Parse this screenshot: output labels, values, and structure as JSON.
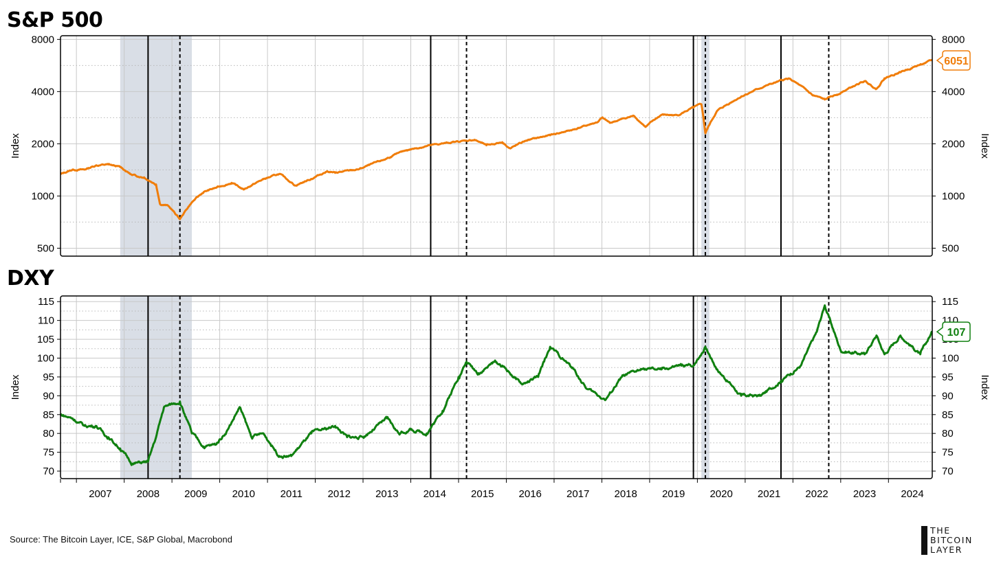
{
  "source": "Source: The Bitcoin Layer, ICE, S&P Global, Macrobond",
  "logo": {
    "lines": [
      "THE",
      "BITCOIN",
      "LAYER"
    ]
  },
  "colors": {
    "sp500": "#f07d0a",
    "dxy": "#108010",
    "shade": "#d9dee6",
    "grid": "#c8c8c8"
  },
  "shaded_periods": [
    {
      "from": "2007-12",
      "to": "2009-06"
    },
    {
      "from": "2020-02",
      "to": "2020-04"
    }
  ],
  "vertical_lines": [
    {
      "date": "2008-07",
      "style": "solid"
    },
    {
      "date": "2009-03",
      "style": "dashed"
    },
    {
      "date": "2014-06",
      "style": "solid"
    },
    {
      "date": "2015-03",
      "style": "dashed"
    },
    {
      "date": "2019-12",
      "style": "solid"
    },
    {
      "date": "2020-03",
      "style": "dashed"
    },
    {
      "date": "2021-10",
      "style": "solid"
    },
    {
      "date": "2022-10",
      "style": "dashed"
    }
  ],
  "chart_data": [
    {
      "type": "line",
      "title": "S&P 500",
      "ylabel": "Index",
      "y2label": "Index",
      "scale": "log",
      "ylim": [
        450,
        8400
      ],
      "yticks": [
        500,
        1000,
        2000,
        4000,
        8000
      ],
      "xlim": [
        "2006-09",
        "2024-12"
      ],
      "x_tick_labels": [
        "2007",
        "2008",
        "2009",
        "2010",
        "2011",
        "2012",
        "2013",
        "2014",
        "2015",
        "2016",
        "2017",
        "2018",
        "2019",
        "2020",
        "2021",
        "2022",
        "2023",
        "2024"
      ],
      "grid": true,
      "last_value_label": "6051",
      "series": [
        {
          "x": [
            "2006-09",
            "2006-12",
            "2007-03",
            "2007-06",
            "2007-09",
            "2007-12",
            "2008-03",
            "2008-06",
            "2008-09",
            "2008-10",
            "2008-12",
            "2009-03",
            "2009-06",
            "2009-09",
            "2009-12",
            "2010-04",
            "2010-07",
            "2010-12",
            "2011-04",
            "2011-08",
            "2011-12",
            "2012-04",
            "2012-06",
            "2012-12",
            "2013-06",
            "2013-12",
            "2014-06",
            "2014-12",
            "2015-05",
            "2015-08",
            "2015-12",
            "2016-02",
            "2016-06",
            "2016-12",
            "2017-06",
            "2017-12",
            "2018-01",
            "2018-03",
            "2018-09",
            "2018-12",
            "2019-04",
            "2019-08",
            "2019-12",
            "2020-02",
            "2020-03",
            "2020-06",
            "2020-12",
            "2021-06",
            "2021-12",
            "2022-06",
            "2022-09",
            "2022-12",
            "2023-07",
            "2023-10",
            "2023-12",
            "2024-07",
            "2024-12"
          ],
          "values": [
            1335,
            1418,
            1420,
            1503,
            1520,
            1468,
            1320,
            1280,
            1166,
            900,
            880,
            735,
            920,
            1055,
            1115,
            1190,
            1090,
            1250,
            1340,
            1150,
            1255,
            1390,
            1360,
            1426,
            1610,
            1840,
            1960,
            2050,
            2110,
            1960,
            2043,
            1880,
            2090,
            2240,
            2420,
            2670,
            2820,
            2640,
            2900,
            2500,
            2940,
            2920,
            3230,
            3380,
            2300,
            3100,
            3750,
            4300,
            4770,
            3800,
            3600,
            3840,
            4590,
            4150,
            4770,
            5500,
            6051
          ]
        }
      ]
    },
    {
      "type": "line",
      "title": "DXY",
      "ylabel": "Index",
      "y2label": "Index",
      "scale": "linear",
      "ylim": [
        68,
        116.5
      ],
      "yticks": [
        70,
        75,
        80,
        85,
        90,
        95,
        100,
        105,
        110,
        115
      ],
      "xlim": [
        "2006-09",
        "2024-12"
      ],
      "x_tick_labels": [
        "2007",
        "2008",
        "2009",
        "2010",
        "2011",
        "2012",
        "2013",
        "2014",
        "2015",
        "2016",
        "2017",
        "2018",
        "2019",
        "2020",
        "2021",
        "2022",
        "2023",
        "2024"
      ],
      "grid": true,
      "last_value_label": "107",
      "series": [
        {
          "x": [
            "2006-09",
            "2006-12",
            "2007-03",
            "2007-06",
            "2007-09",
            "2007-12",
            "2008-03",
            "2008-07",
            "2008-09",
            "2008-11",
            "2009-03",
            "2009-06",
            "2009-09",
            "2009-12",
            "2010-03",
            "2010-06",
            "2010-09",
            "2010-12",
            "2011-04",
            "2011-07",
            "2011-12",
            "2012-06",
            "2012-09",
            "2013-01",
            "2013-07",
            "2013-10",
            "2014-01",
            "2014-05",
            "2014-09",
            "2015-01",
            "2015-03",
            "2015-06",
            "2015-10",
            "2015-12",
            "2016-05",
            "2016-09",
            "2016-12",
            "2017-06",
            "2017-09",
            "2018-02",
            "2018-06",
            "2018-11",
            "2019-04",
            "2019-09",
            "2019-12",
            "2020-03",
            "2020-06",
            "2020-12",
            "2021-05",
            "2021-10",
            "2022-03",
            "2022-07",
            "2022-09",
            "2023-01",
            "2023-07",
            "2023-10",
            "2023-12",
            "2024-04",
            "2024-09",
            "2024-12"
          ],
          "values": [
            85,
            84,
            82,
            82,
            79,
            76,
            72,
            72.5,
            79,
            87,
            88.5,
            80,
            76.5,
            77,
            81,
            87,
            79,
            80,
            74,
            74,
            80,
            82,
            79,
            79,
            84,
            80,
            81,
            80,
            86,
            95,
            99,
            96,
            99,
            98,
            93,
            95,
            103,
            97,
            92,
            89,
            95,
            97,
            97,
            98,
            98,
            103,
            97,
            90,
            90,
            94,
            98,
            107,
            114,
            102,
            101,
            106,
            101,
            106,
            101,
            107
          ]
        }
      ]
    }
  ]
}
